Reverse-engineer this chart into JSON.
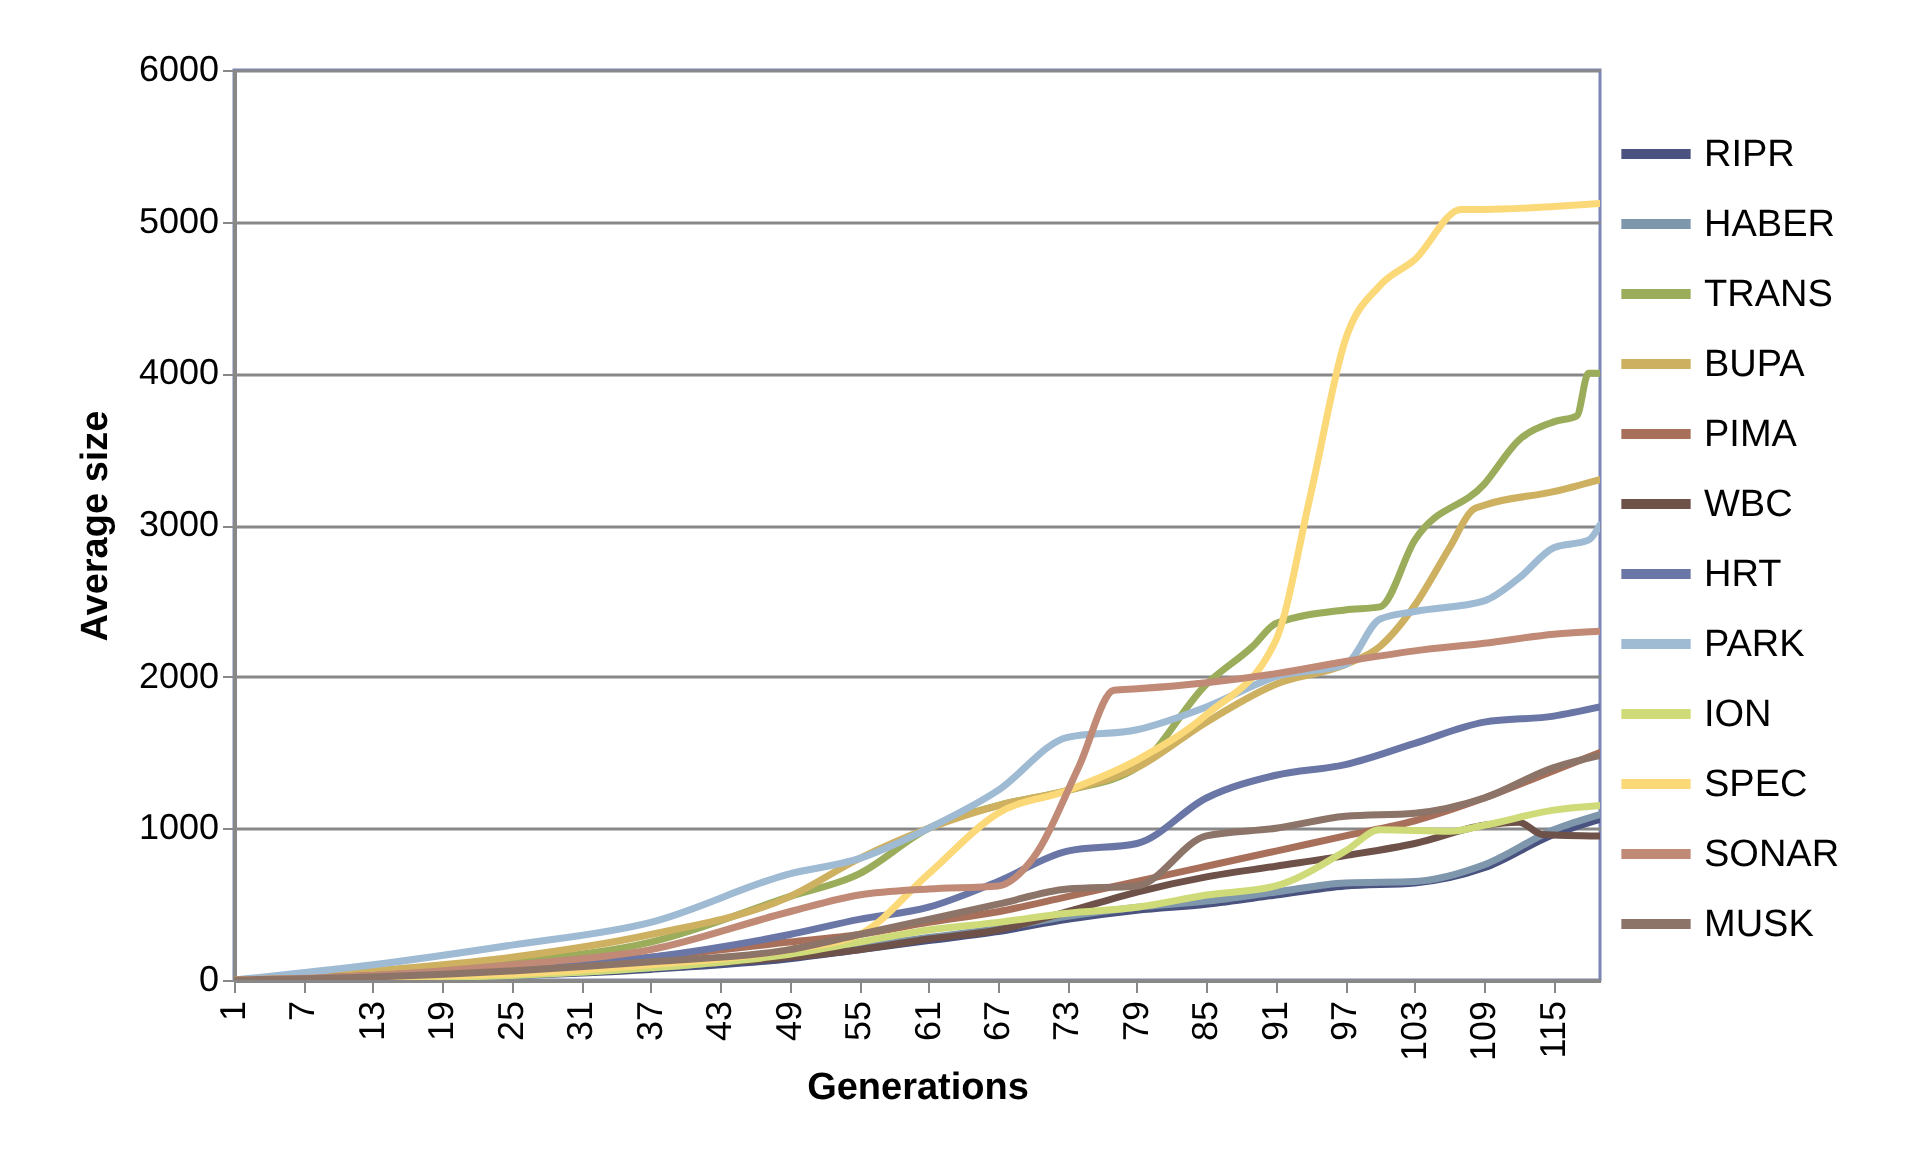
{
  "chart_data": {
    "type": "line",
    "xlabel": "Generations",
    "ylabel": "Average size",
    "xlim": [
      1,
      119
    ],
    "xticks": [
      1,
      7,
      13,
      19,
      25,
      31,
      37,
      43,
      49,
      55,
      61,
      67,
      73,
      79,
      85,
      91,
      97,
      103,
      109,
      115
    ],
    "ylim": [
      0,
      6000
    ],
    "yticks": [
      0,
      1000,
      2000,
      3000,
      4000,
      5000,
      6000
    ],
    "grid": "y",
    "legend": "right",
    "series": [
      {
        "name": "RIPR",
        "color": "#4a5280",
        "x": [
          1,
          13,
          25,
          37,
          49,
          55,
          61,
          67,
          73,
          79,
          85,
          91,
          97,
          103,
          109,
          115,
          119
        ],
        "values": [
          0,
          10,
          30,
          70,
          140,
          200,
          260,
          320,
          400,
          460,
          500,
          560,
          620,
          640,
          740,
          960,
          1060
        ]
      },
      {
        "name": "HABER",
        "color": "#7f97ad",
        "x": [
          1,
          13,
          25,
          37,
          49,
          55,
          61,
          67,
          73,
          79,
          85,
          91,
          97,
          103,
          109,
          115,
          119
        ],
        "values": [
          0,
          10,
          30,
          80,
          160,
          220,
          280,
          340,
          420,
          480,
          520,
          580,
          640,
          650,
          760,
          990,
          1090
        ]
      },
      {
        "name": "TRANS",
        "color": "#9bad5a",
        "x": [
          1,
          13,
          25,
          37,
          49,
          55,
          61,
          67,
          73,
          79,
          85,
          89,
          91,
          97,
          100,
          103,
          109,
          112,
          115,
          117,
          118,
          119
        ],
        "values": [
          0,
          50,
          120,
          250,
          550,
          700,
          1000,
          1150,
          1250,
          1400,
          1950,
          2200,
          2350,
          2440,
          2460,
          2900,
          3270,
          3560,
          3680,
          3720,
          4000,
          4000
        ]
      },
      {
        "name": "BUPA",
        "color": "#cdb060",
        "x": [
          1,
          13,
          25,
          37,
          49,
          55,
          61,
          67,
          73,
          79,
          85,
          91,
          97,
          100,
          103,
          106,
          108,
          109,
          115,
          119
        ],
        "values": [
          0,
          60,
          150,
          300,
          550,
          800,
          1000,
          1150,
          1250,
          1400,
          1700,
          1950,
          2080,
          2200,
          2470,
          2850,
          3100,
          3130,
          3220,
          3300
        ]
      },
      {
        "name": "PIMA",
        "color": "#a86f5a",
        "x": [
          1,
          13,
          25,
          37,
          49,
          55,
          61,
          67,
          73,
          79,
          85,
          91,
          97,
          103,
          109,
          115,
          119
        ],
        "values": [
          0,
          30,
          80,
          150,
          250,
          300,
          380,
          450,
          550,
          650,
          750,
          850,
          950,
          1050,
          1200,
          1380,
          1500
        ]
      },
      {
        "name": "WBC",
        "color": "#6e5148",
        "x": [
          1,
          13,
          25,
          37,
          49,
          55,
          61,
          67,
          73,
          79,
          85,
          91,
          97,
          103,
          109,
          112,
          114,
          119
        ],
        "values": [
          0,
          10,
          40,
          90,
          150,
          200,
          270,
          330,
          450,
          580,
          680,
          750,
          820,
          900,
          1020,
          1040,
          960,
          950
        ]
      },
      {
        "name": "HRT",
        "color": "#6a76a5",
        "x": [
          1,
          13,
          25,
          37,
          49,
          55,
          61,
          67,
          73,
          79,
          85,
          91,
          97,
          103,
          109,
          115,
          119
        ],
        "values": [
          0,
          20,
          60,
          150,
          300,
          400,
          480,
          650,
          850,
          900,
          1200,
          1350,
          1420,
          1560,
          1700,
          1740,
          1800
        ]
      },
      {
        "name": "PARK",
        "color": "#9fbad3",
        "x": [
          1,
          13,
          25,
          37,
          49,
          55,
          61,
          67,
          73,
          79,
          85,
          91,
          97,
          100,
          103,
          109,
          112,
          115,
          118,
          119
        ],
        "values": [
          0,
          100,
          230,
          380,
          700,
          800,
          1000,
          1250,
          1600,
          1650,
          1800,
          2000,
          2080,
          2380,
          2430,
          2500,
          2650,
          2850,
          2900,
          3000
        ]
      },
      {
        "name": "ION",
        "color": "#cfdb78",
        "x": [
          1,
          13,
          25,
          37,
          49,
          55,
          61,
          67,
          73,
          79,
          85,
          91,
          97,
          100,
          106,
          109,
          115,
          119
        ],
        "values": [
          0,
          10,
          30,
          80,
          170,
          250,
          330,
          380,
          440,
          480,
          560,
          620,
          850,
          990,
          980,
          1020,
          1120,
          1150
        ]
      },
      {
        "name": "SPEC",
        "color": "#fcd978",
        "x": [
          1,
          13,
          25,
          37,
          49,
          55,
          61,
          67,
          73,
          79,
          85,
          91,
          94,
          97,
          100,
          103,
          107,
          109,
          115,
          119
        ],
        "values": [
          0,
          20,
          40,
          100,
          200,
          300,
          700,
          1100,
          1250,
          1450,
          1750,
          2240,
          3200,
          4220,
          4580,
          4750,
          5080,
          5080,
          5100,
          5120
        ]
      },
      {
        "name": "SONAR",
        "color": "#c08a76",
        "x": [
          1,
          13,
          25,
          37,
          49,
          55,
          61,
          67,
          70,
          74,
          77,
          79,
          85,
          91,
          97,
          103,
          109,
          115,
          119
        ],
        "values": [
          0,
          30,
          100,
          200,
          450,
          560,
          600,
          620,
          800,
          1410,
          1910,
          1920,
          1960,
          2020,
          2100,
          2170,
          2220,
          2280,
          2300
        ]
      },
      {
        "name": "MUSK",
        "color": "#8c7468",
        "x": [
          1,
          13,
          25,
          37,
          49,
          55,
          61,
          67,
          73,
          79,
          85,
          91,
          97,
          103,
          109,
          115,
          119
        ],
        "values": [
          0,
          20,
          60,
          120,
          200,
          300,
          400,
          500,
          600,
          620,
          950,
          1000,
          1080,
          1100,
          1200,
          1400,
          1480
        ]
      }
    ]
  }
}
